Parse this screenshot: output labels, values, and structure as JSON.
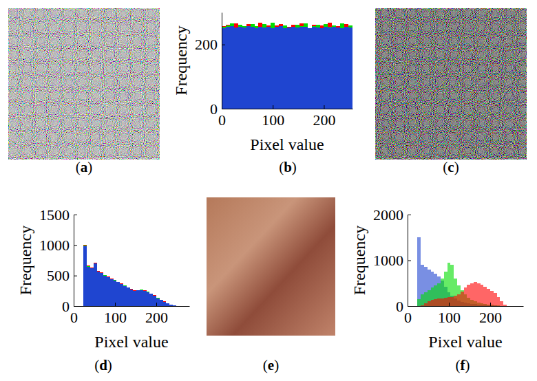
{
  "images": [
    {
      "label": "(a)"
    },
    {
      "label": "(c)"
    },
    {
      "label": "(e)"
    }
  ],
  "chart_data": [
    {
      "type": "histogram",
      "title": "(b)",
      "x_label": "Pixel value",
      "y_label": "Frequency",
      "bins": [
        0,
        8,
        16,
        24,
        32,
        40,
        48,
        56,
        64,
        72,
        80,
        88,
        96,
        104,
        112,
        120,
        128,
        136,
        144,
        152,
        160,
        168,
        176,
        184,
        192,
        200,
        208,
        216,
        224,
        232,
        240,
        248,
        256
      ],
      "series": [
        {
          "color": "#ff0000",
          "values": [
            258,
            262,
            251,
            266,
            255,
            249,
            263,
            257,
            252,
            268,
            254,
            260,
            247,
            259,
            264,
            253,
            256,
            261,
            250,
            265,
            257,
            248,
            262,
            255,
            259,
            251,
            267,
            254,
            258,
            249,
            263,
            256
          ]
        },
        {
          "color": "#00dd00",
          "values": [
            254,
            259,
            266,
            250,
            261,
            257,
            252,
            264,
            258,
            249,
            263,
            255,
            267,
            251,
            256,
            260,
            253,
            248,
            262,
            258,
            265,
            250,
            257,
            261,
            247,
            263,
            256,
            259,
            252,
            266,
            254,
            260
          ]
        },
        {
          "color": "#1f45d0",
          "values": [
            251,
            255,
            258,
            253,
            256,
            252,
            257,
            254,
            250,
            256,
            253,
            255,
            251,
            254,
            257,
            250,
            253,
            255,
            252,
            254,
            256,
            251,
            254,
            253,
            250,
            255,
            252,
            256,
            253,
            251,
            255,
            252
          ]
        }
      ],
      "xlim": [
        0,
        256
      ],
      "ylim": [
        0,
        300
      ],
      "xticks": [
        0,
        100,
        200
      ],
      "yticks": [
        0,
        200
      ]
    },
    {
      "type": "histogram",
      "title": "(d)",
      "x_label": "Pixel value",
      "y_label": "Frequency",
      "bins": [
        0,
        8,
        16,
        24,
        32,
        40,
        48,
        56,
        64,
        72,
        80,
        88,
        96,
        104,
        112,
        120,
        128,
        136,
        144,
        152,
        160,
        168,
        176,
        184,
        192,
        200,
        208,
        216,
        224,
        232,
        240,
        248,
        256
      ],
      "series": [
        {
          "color": "#ff0000",
          "values": [
            0,
            0,
            0,
            1000,
            660,
            630,
            710,
            570,
            550,
            510,
            480,
            450,
            430,
            400,
            370,
            340,
            310,
            280,
            255,
            265,
            270,
            255,
            235,
            205,
            175,
            135,
            105,
            75,
            48,
            28,
            9,
            2
          ]
        },
        {
          "color": "#00dd00",
          "values": [
            0,
            0,
            0,
            990,
            650,
            625,
            700,
            565,
            545,
            505,
            475,
            445,
            425,
            395,
            365,
            335,
            305,
            275,
            250,
            262,
            266,
            252,
            232,
            202,
            172,
            132,
            102,
            72,
            46,
            26,
            8,
            2
          ]
        },
        {
          "color": "#1f45d0",
          "values": [
            0,
            0,
            0,
            980,
            645,
            615,
            695,
            560,
            540,
            500,
            470,
            440,
            420,
            390,
            360,
            330,
            300,
            270,
            248,
            258,
            262,
            248,
            228,
            198,
            168,
            128,
            98,
            70,
            44,
            24,
            7,
            1
          ]
        }
      ],
      "xlim": [
        0,
        280
      ],
      "ylim": [
        0,
        1500
      ],
      "xticks": [
        0,
        100,
        200
      ],
      "yticks": [
        0,
        500,
        1000,
        1500
      ]
    },
    {
      "type": "histogram",
      "title": "(f)",
      "x_label": "Pixel value",
      "y_label": "Frequency",
      "bins": [
        0,
        8,
        16,
        24,
        32,
        40,
        48,
        56,
        64,
        72,
        80,
        88,
        96,
        104,
        112,
        120,
        128,
        136,
        144,
        152,
        160,
        168,
        176,
        184,
        192,
        200,
        208,
        216,
        224,
        232,
        240,
        248,
        256
      ],
      "series": [
        {
          "color": "#1f45d0",
          "values": [
            0,
            0,
            0,
            1500,
            900,
            850,
            800,
            750,
            700,
            650,
            550,
            420,
            300,
            220,
            160,
            120,
            90,
            70,
            55,
            45,
            40,
            35,
            30,
            25,
            20,
            15,
            10,
            6,
            3,
            1,
            0,
            0
          ]
        },
        {
          "color": "#00dd00",
          "values": [
            0,
            0,
            0,
            150,
            250,
            300,
            350,
            400,
            450,
            500,
            600,
            750,
            950,
            900,
            600,
            450,
            350,
            250,
            180,
            130,
            100,
            80,
            60,
            45,
            35,
            25,
            15,
            8,
            4,
            1,
            0,
            0
          ]
        },
        {
          "color": "#ff0000",
          "values": [
            0,
            0,
            0,
            0,
            20,
            60,
            100,
            130,
            150,
            160,
            170,
            180,
            190,
            200,
            220,
            260,
            320,
            400,
            460,
            500,
            520,
            500,
            460,
            420,
            380,
            330,
            280,
            200,
            100,
            30,
            5,
            0
          ]
        }
      ],
      "xlim": [
        0,
        280
      ],
      "ylim": [
        0,
        2000
      ],
      "xticks": [
        0,
        100,
        200
      ],
      "yticks": [
        0,
        1000,
        2000
      ]
    }
  ]
}
